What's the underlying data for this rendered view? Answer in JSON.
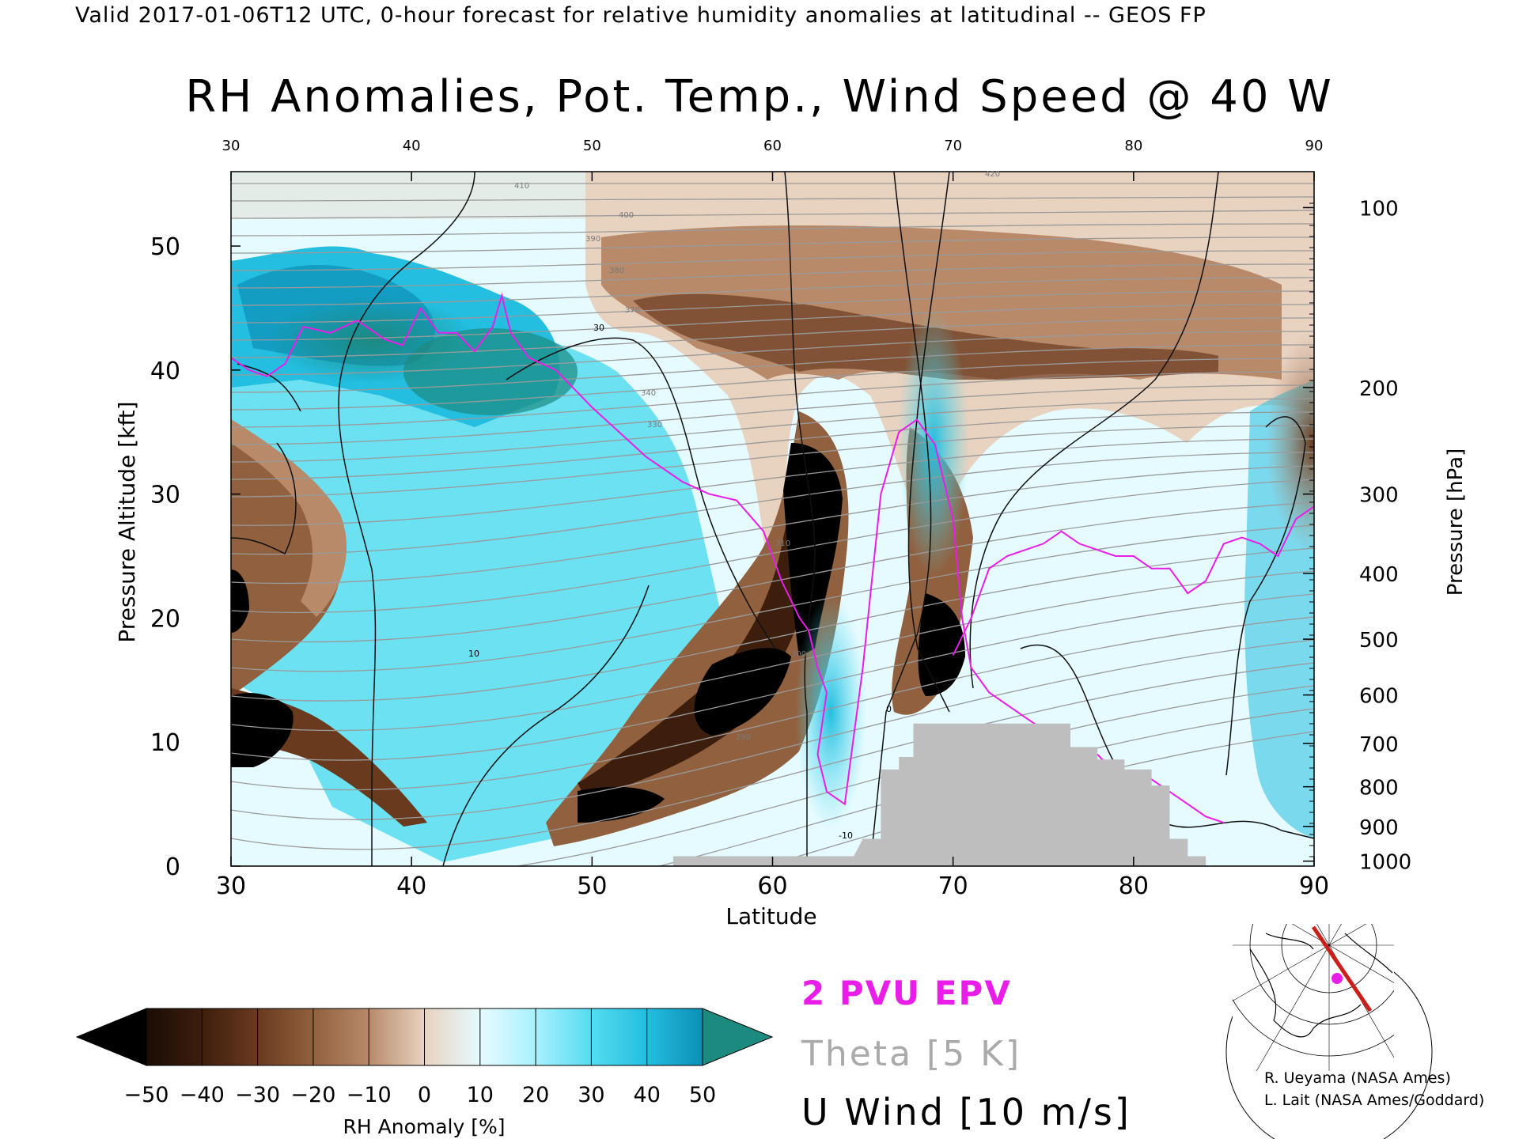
{
  "header": "Valid 2017-01-06T12 UTC, 0-hour forecast for relative humidity anomalies at latitudinal -- GEOS FP",
  "chart_data": {
    "type": "heatmap",
    "title": "RH Anomalies, Pot. Temp., Wind Speed @ 40 W",
    "xlabel": "Latitude",
    "ylabel": "Pressure Altitude [kft]",
    "y2label": "Pressure [hPa]",
    "xlim": [
      30,
      90
    ],
    "ylim": [
      0,
      56
    ],
    "x_ticks": [
      "30",
      "40",
      "50",
      "60",
      "70",
      "80",
      "90"
    ],
    "top_x_ticks": [
      "30",
      "40",
      "50",
      "60",
      "70",
      "80",
      "90"
    ],
    "y_ticks": [
      "0",
      "10",
      "20",
      "30",
      "40",
      "50"
    ],
    "pressure_ticks": [
      {
        "label": "100",
        "kft": 53.1
      },
      {
        "label": "200",
        "kft": 38.6
      },
      {
        "label": "300",
        "kft": 30.0
      },
      {
        "label": "400",
        "kft": 23.6
      },
      {
        "label": "500",
        "kft": 18.3
      },
      {
        "label": "600",
        "kft": 13.8
      },
      {
        "label": "700",
        "kft": 9.9
      },
      {
        "label": "800",
        "kft": 6.4
      },
      {
        "label": "900",
        "kft": 3.2
      },
      {
        "label": "1000",
        "kft": 0.4
      }
    ],
    "colorbar": {
      "label": "RH Anomaly [%]",
      "tick_labels": [
        "-50",
        "-40",
        "-30",
        "-20",
        "-10",
        "0",
        "10",
        "20",
        "30",
        "40",
        "50"
      ],
      "colors": [
        "#1a0c05",
        "#3d1e0d",
        "#6a3a1f",
        "#91603e",
        "#b88a6a",
        "#e8d2c0",
        "#e6fbff",
        "#a8f1fd",
        "#55dcf0",
        "#23bee0",
        "#0d8fb5"
      ],
      "over_color": "#1d8a80",
      "under_color": "#000000"
    },
    "legend": {
      "epv": "2 PVU EPV",
      "theta": "Theta [5 K]",
      "wind": "U Wind [10 m/s]"
    },
    "legend_colors": {
      "epv": "#e81ee8",
      "theta": "#aaaaaa",
      "wind": "#000000"
    },
    "theta_labels": [
      "290",
      "300",
      "310",
      "330",
      "340",
      "370",
      "380",
      "390",
      "400",
      "410",
      "420"
    ],
    "wind_contour_labels": [
      "-10",
      "0",
      "10",
      "30"
    ],
    "terrain_color": "#bebebe",
    "terrain_profile": [
      [
        54.5,
        0.8
      ],
      [
        64.5,
        0.8
      ],
      [
        65,
        2.2
      ],
      [
        66,
        2.2
      ],
      [
        66,
        7.8
      ],
      [
        67,
        7.8
      ],
      [
        67,
        8.8
      ],
      [
        67.8,
        8.8
      ],
      [
        67.8,
        11.5
      ],
      [
        76.5,
        11.5
      ],
      [
        76.5,
        9.6
      ],
      [
        78,
        9.6
      ],
      [
        78,
        8.6
      ],
      [
        79.5,
        8.6
      ],
      [
        79.5,
        7.8
      ],
      [
        81,
        7.8
      ],
      [
        81,
        6.5
      ],
      [
        82,
        6.5
      ],
      [
        82,
        2.2
      ],
      [
        83,
        2.2
      ],
      [
        83,
        0.8
      ],
      [
        84,
        0.8
      ],
      [
        84,
        0
      ]
    ],
    "epv_2pvu_line": [
      [
        30,
        41
      ],
      [
        31,
        40
      ],
      [
        32,
        39.5
      ],
      [
        33,
        40.5
      ],
      [
        34,
        43.5
      ],
      [
        35.5,
        43
      ],
      [
        37,
        44
      ],
      [
        38.5,
        42.5
      ],
      [
        39.5,
        42
      ],
      [
        40.5,
        45
      ],
      [
        41.5,
        43
      ],
      [
        42.5,
        43
      ],
      [
        43.5,
        41.5
      ],
      [
        44.5,
        43.5
      ],
      [
        45,
        46
      ],
      [
        45.5,
        43
      ],
      [
        46.5,
        41
      ],
      [
        48,
        40
      ],
      [
        50,
        37
      ],
      [
        51.5,
        35
      ],
      [
        53,
        33
      ],
      [
        55,
        31
      ],
      [
        56.5,
        30
      ],
      [
        58,
        29.5
      ],
      [
        59.5,
        27
      ],
      [
        60.5,
        23
      ],
      [
        61.5,
        20
      ],
      [
        62,
        19
      ],
      [
        62.5,
        16
      ],
      [
        63,
        14
      ],
      [
        62.5,
        9
      ],
      [
        63,
        6
      ],
      [
        64,
        5
      ],
      [
        65,
        16
      ],
      [
        66,
        30
      ],
      [
        67,
        35
      ],
      [
        68,
        36
      ],
      [
        69,
        34
      ],
      [
        70,
        28
      ],
      [
        70.5,
        20
      ],
      [
        71,
        16
      ],
      [
        72,
        14
      ],
      [
        73,
        13
      ],
      [
        74,
        12
      ],
      [
        75,
        11
      ],
      [
        76,
        10
      ],
      [
        77,
        9
      ],
      [
        78,
        9
      ],
      [
        79,
        7.5
      ],
      [
        80,
        7
      ],
      [
        81,
        7
      ],
      [
        82,
        6
      ],
      [
        83,
        5
      ],
      [
        84,
        4
      ],
      [
        85,
        3.5
      ]
    ],
    "epv_2pvu_line2": [
      [
        70,
        17
      ],
      [
        71,
        20
      ],
      [
        72,
        24
      ],
      [
        73,
        25
      ],
      [
        74,
        25.5
      ],
      [
        75,
        26
      ],
      [
        76,
        27
      ],
      [
        77,
        26
      ],
      [
        78,
        25.5
      ],
      [
        79,
        25
      ],
      [
        80,
        25
      ],
      [
        81,
        24
      ],
      [
        82,
        24
      ],
      [
        83,
        22
      ],
      [
        84,
        23
      ],
      [
        85,
        26
      ],
      [
        86,
        26.5
      ],
      [
        87,
        26
      ],
      [
        88,
        25
      ],
      [
        89,
        28
      ],
      [
        90,
        29
      ]
    ]
  },
  "map_inset": {
    "track_color": "#cc1f1a",
    "point_color": "#e81ee8"
  },
  "credits": {
    "line1": "R. Ueyama (NASA Ames)",
    "line2": "L. Lait (NASA Ames/Goddard)"
  }
}
